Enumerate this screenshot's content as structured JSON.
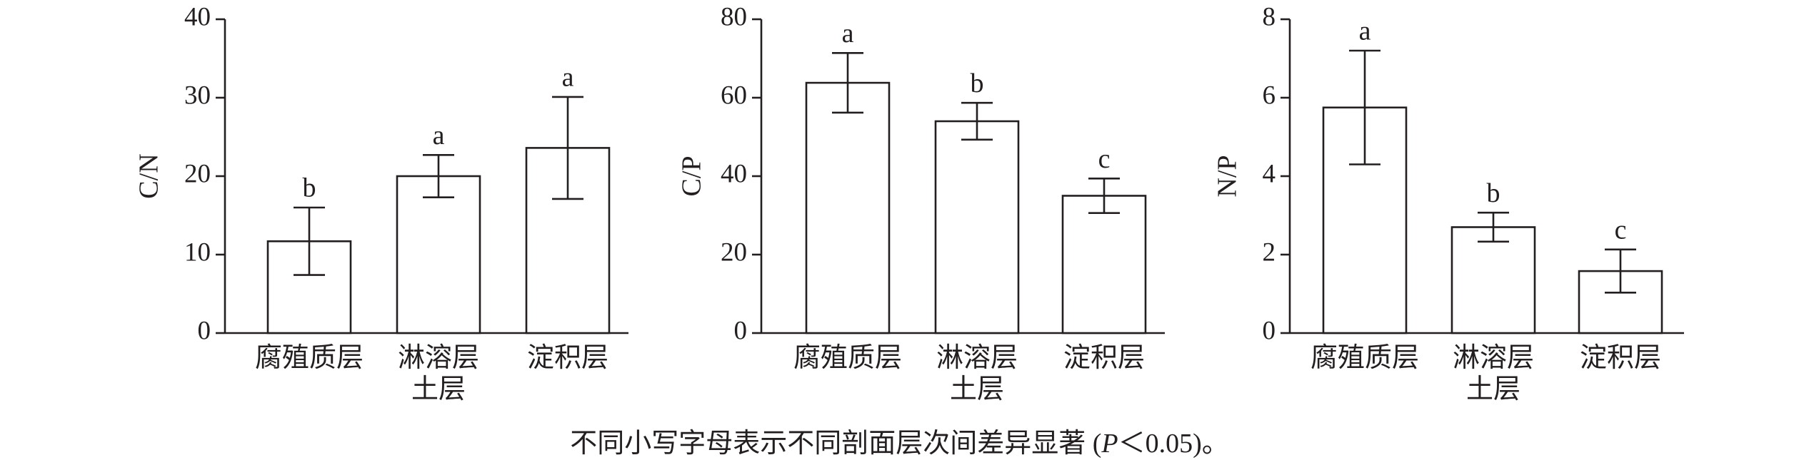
{
  "chart_data": [
    {
      "type": "bar",
      "ylabel": "C/N",
      "categories": [
        "腐殖质层",
        "淋溶层\n土层",
        "淀积层"
      ],
      "values": [
        11.7,
        20,
        23.6
      ],
      "errors": [
        4.3,
        2.7,
        6.5
      ],
      "letters": [
        "b",
        "a",
        "a"
      ],
      "ylim": [
        0,
        40
      ],
      "yticks": [
        0,
        10,
        20,
        30,
        40
      ]
    },
    {
      "type": "bar",
      "ylabel": "C/P",
      "categories": [
        "腐殖质层",
        "淋溶层\n土层",
        "淀积层"
      ],
      "values": [
        63.8,
        54,
        35
      ],
      "errors": [
        7.6,
        4.7,
        4.4
      ],
      "letters": [
        "a",
        "b",
        "c"
      ],
      "ylim": [
        0,
        80
      ],
      "yticks": [
        0,
        20,
        40,
        60,
        80
      ]
    },
    {
      "type": "bar",
      "ylabel": "N/P",
      "categories": [
        "腐殖质层",
        "淋溶层\n土层",
        "淀积层"
      ],
      "values": [
        5.75,
        2.7,
        1.58
      ],
      "errors": [
        1.45,
        0.37,
        0.55
      ],
      "letters": [
        "a",
        "b",
        "c"
      ],
      "ylim": [
        0,
        8
      ],
      "yticks": [
        0,
        2,
        4,
        6,
        8
      ]
    }
  ],
  "caption": {
    "before": "不同小写字母表示不同剖面层次间差异显著 (",
    "italic": "P",
    "after": "＜0.05)。"
  }
}
